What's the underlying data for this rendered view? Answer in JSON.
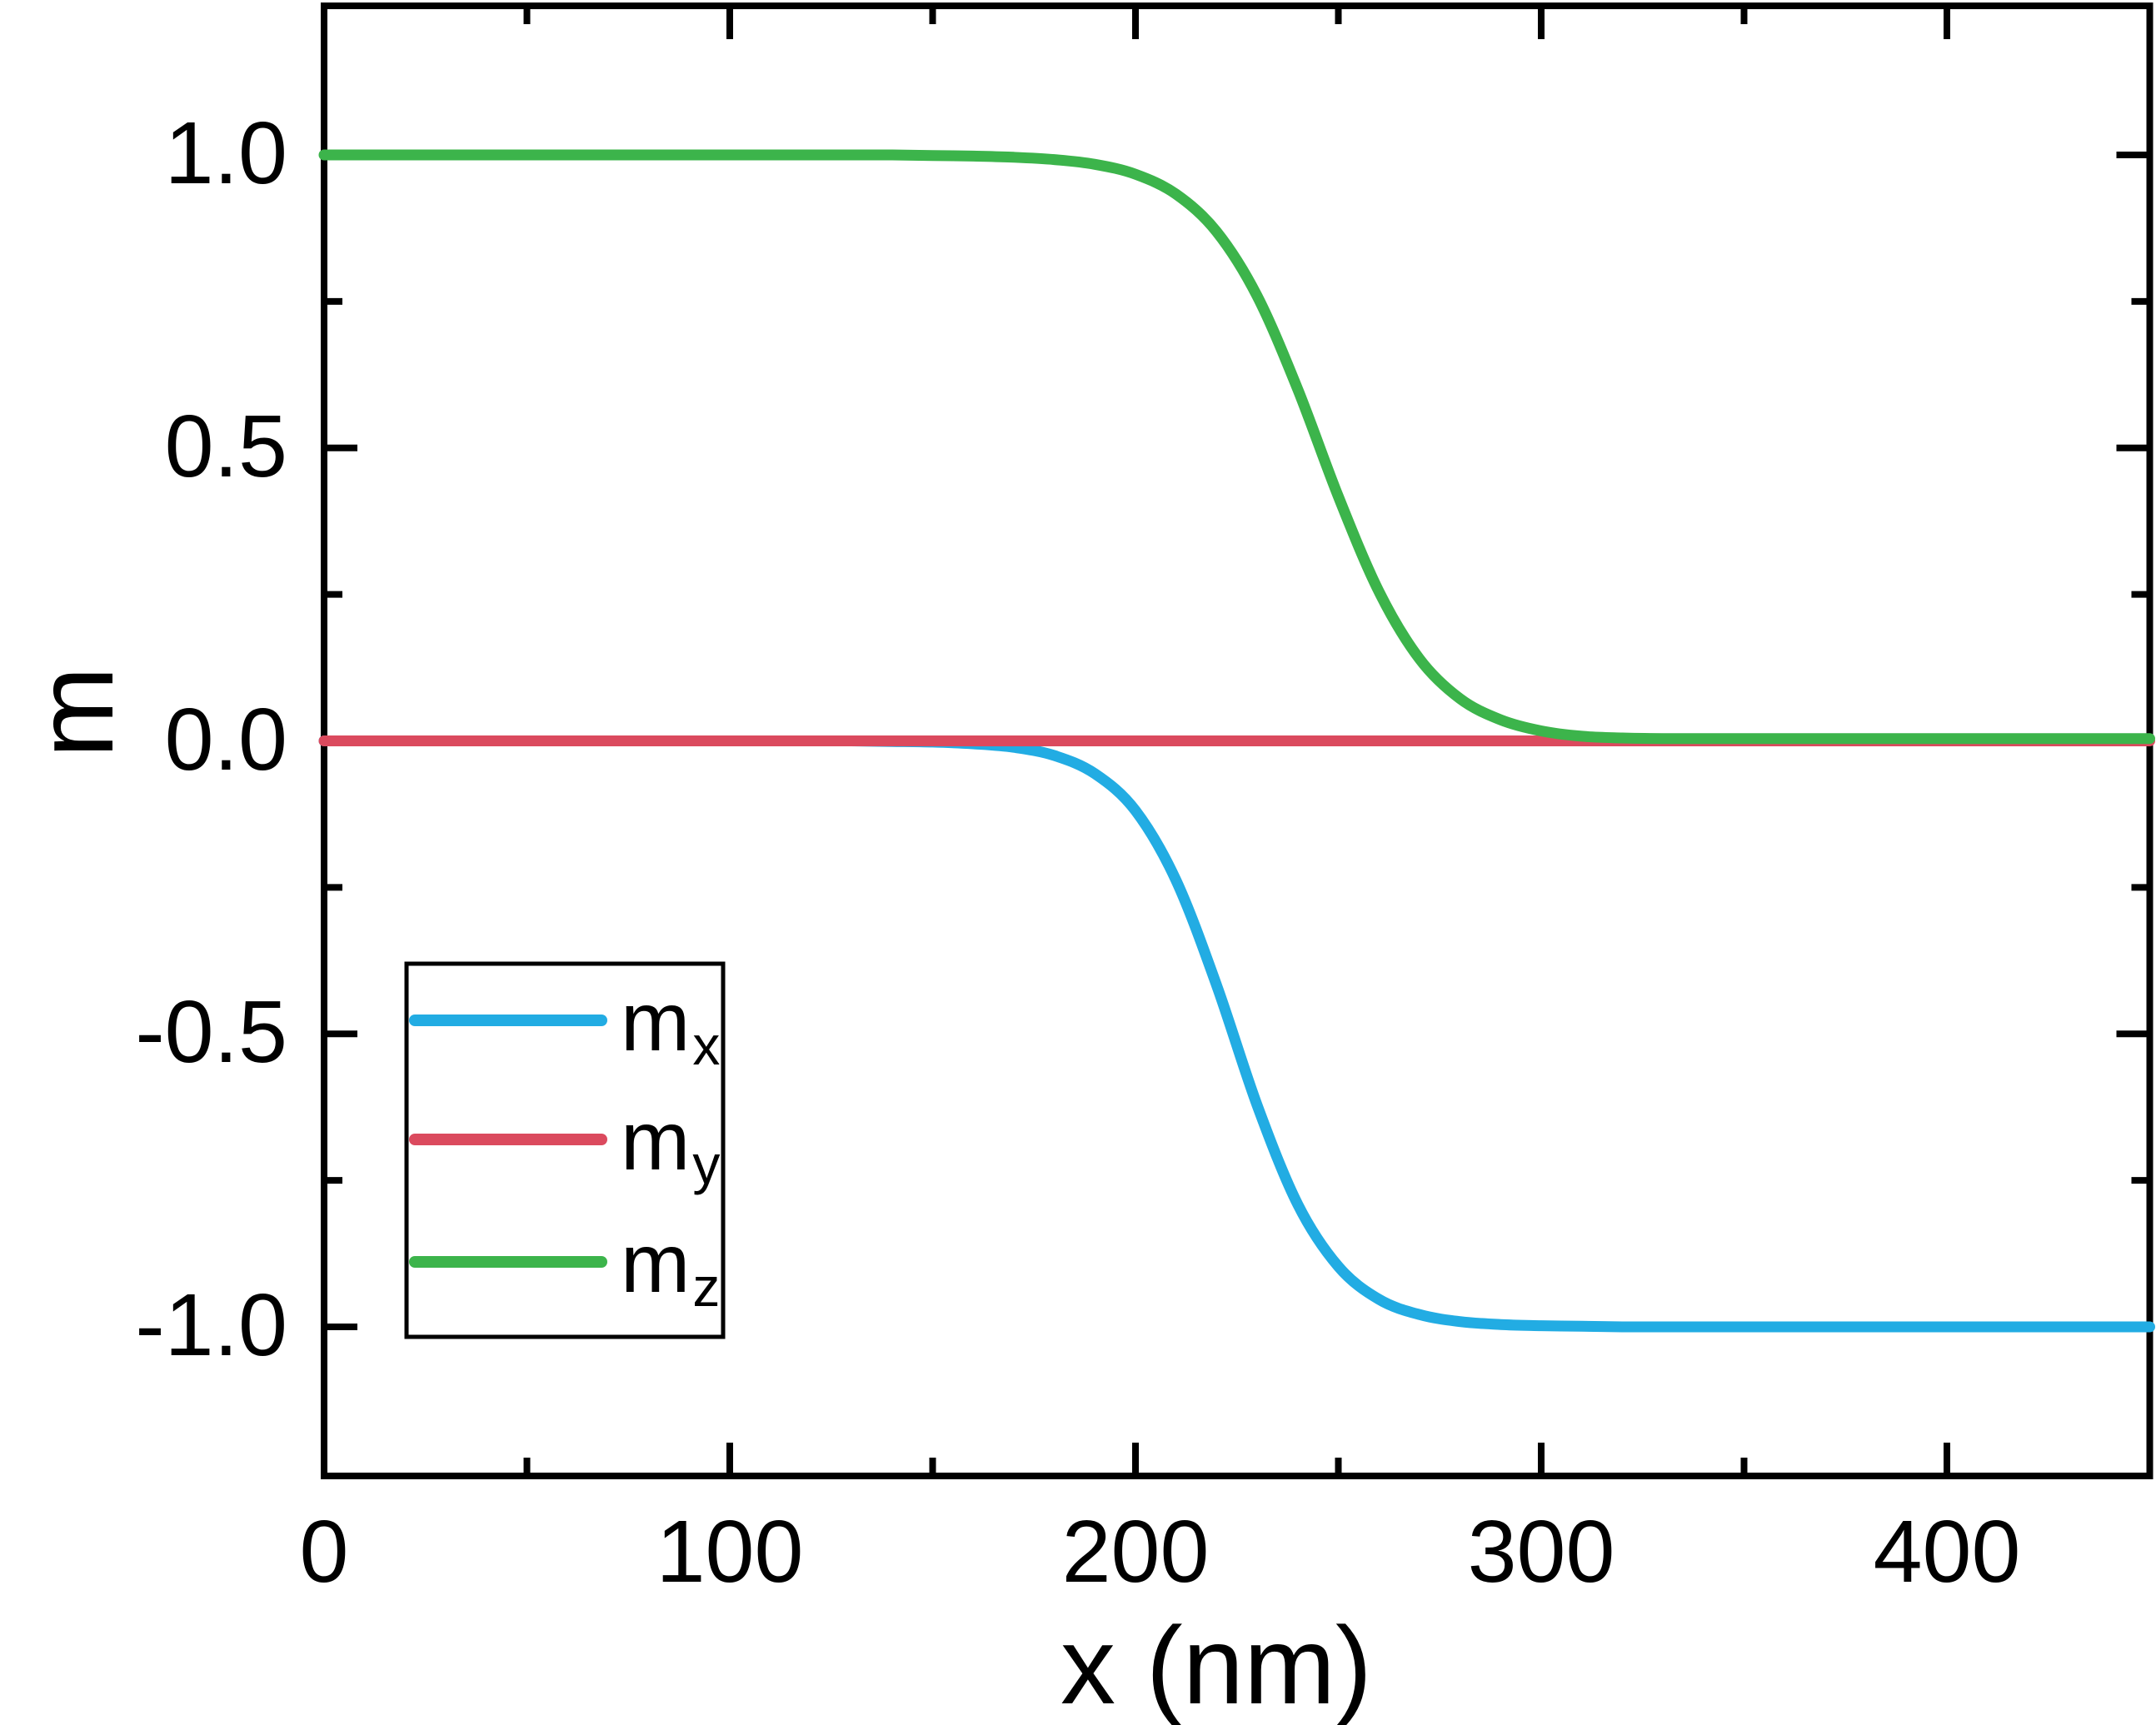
{
  "figure": {
    "background_color": "#ffffff",
    "frame_color": "#000000",
    "text_color": "#000000"
  },
  "axes": {
    "x_title": "x (nm)",
    "y_title": "m"
  },
  "legend": {
    "position": "lower-left",
    "items": [
      {
        "base": "m",
        "sub": "x",
        "color": "#22ACE3"
      },
      {
        "base": "m",
        "sub": "y",
        "color": "#DB4A5E"
      },
      {
        "base": "m",
        "sub": "z",
        "color": "#3CB44B"
      }
    ]
  },
  "chart_data": {
    "type": "line",
    "title": "",
    "xlabel": "x (nm)",
    "ylabel": "m",
    "xlim": [
      0,
      450
    ],
    "ylim": [
      -1.25,
      1.25
    ],
    "grid": false,
    "tick_style": "inward, mirrored on all four sides",
    "x_ticks": {
      "labels": [
        "0",
        "100",
        "200",
        "300",
        "400"
      ],
      "values": [
        0,
        100,
        200,
        300,
        400
      ],
      "minor_values": [
        50,
        150,
        250,
        350
      ]
    },
    "y_ticks": {
      "labels": [
        "1.0",
        "0.5",
        "0.0",
        "-0.5",
        "-1.0"
      ],
      "values": [
        1.0,
        0.5,
        0.0,
        -0.5,
        -1.0
      ],
      "minor_values": [
        -0.75,
        -0.25,
        0.25,
        0.75
      ]
    },
    "legend_position": "lower left",
    "x": [
      0,
      10,
      20,
      30,
      40,
      50,
      60,
      70,
      80,
      90,
      100,
      110,
      120,
      130,
      140,
      150,
      160,
      170,
      180,
      190,
      200,
      210,
      220,
      230,
      240,
      250,
      260,
      270,
      280,
      290,
      300,
      310,
      320,
      330,
      340,
      350,
      360,
      370,
      380,
      390,
      400,
      410,
      420,
      430,
      440,
      450
    ],
    "series": [
      {
        "name": "m_x",
        "color": "#22ACE3",
        "values": [
          0,
          0,
          0,
          0,
          0,
          0,
          0,
          0,
          0,
          0,
          0,
          0,
          0,
          0,
          -0.001,
          -0.002,
          -0.005,
          -0.011,
          -0.025,
          -0.056,
          -0.119,
          -0.238,
          -0.417,
          -0.622,
          -0.791,
          -0.897,
          -0.953,
          -0.979,
          -0.991,
          -0.996,
          -0.998,
          -0.999,
          -1,
          -1,
          -1,
          -1,
          -1,
          -1,
          -1,
          -1,
          -1,
          -1,
          -1,
          -1,
          -1,
          -1
        ]
      },
      {
        "name": "m_y",
        "color": "#DB4A5E",
        "values": [
          0,
          0,
          0,
          0,
          0,
          0,
          0,
          0,
          0,
          0,
          0,
          0,
          0,
          0,
          0,
          0,
          0,
          0,
          0,
          0,
          0,
          0,
          0,
          0,
          0,
          0,
          0,
          0,
          0,
          0,
          0,
          0,
          0,
          0,
          0,
          0,
          0,
          0,
          0,
          0,
          0,
          0,
          0,
          0,
          0,
          0
        ]
      },
      {
        "name": "m_z",
        "color": "#3CB44B",
        "values": [
          1,
          1,
          1,
          1,
          1,
          1,
          1,
          1,
          1,
          1,
          1,
          1,
          1,
          1,
          1,
          0.999,
          0.998,
          0.996,
          0.992,
          0.984,
          0.967,
          0.933,
          0.869,
          0.759,
          0.6,
          0.417,
          0.255,
          0.14,
          0.072,
          0.036,
          0.017,
          0.008,
          0.005,
          0.004,
          0.004,
          0.004,
          0.004,
          0.004,
          0.004,
          0.004,
          0.004,
          0.004,
          0.004,
          0.004,
          0.004,
          0.004
        ]
      }
    ]
  }
}
